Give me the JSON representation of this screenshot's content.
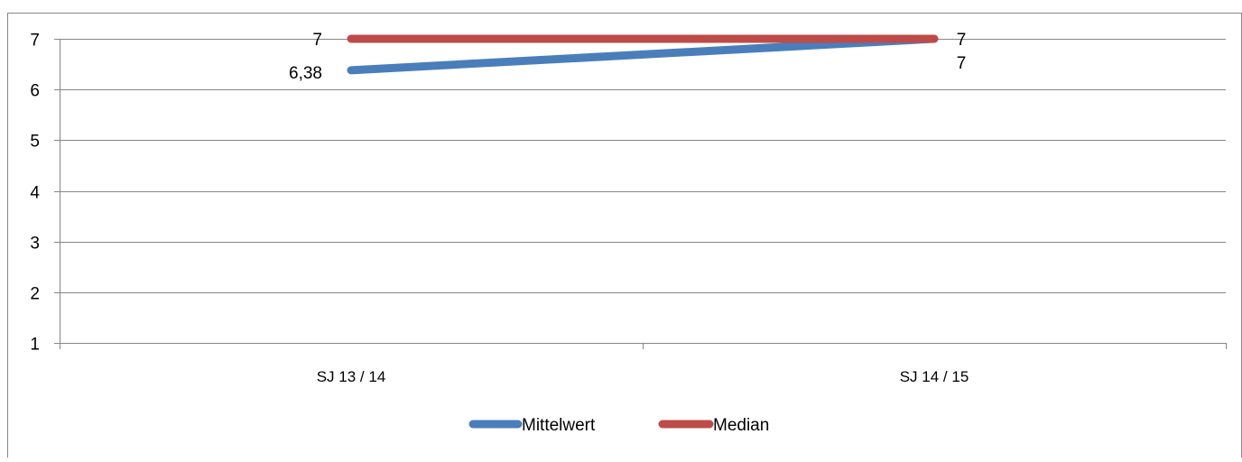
{
  "chart_data": {
    "type": "line",
    "title": "",
    "categories": [
      "SJ 13 / 14",
      "SJ 14 / 15"
    ],
    "series": [
      {
        "name": "Mittelwert",
        "values": [
          6.38,
          7
        ],
        "labels": [
          "6,38",
          "7"
        ],
        "color": "#4A7EBB"
      },
      {
        "name": "Median",
        "values": [
          7,
          7
        ],
        "labels": [
          "7",
          "7"
        ],
        "color": "#BE4B48"
      }
    ],
    "y_ticks": [
      "1",
      "2",
      "3",
      "4",
      "5",
      "6",
      "7"
    ],
    "ylim": [
      1,
      7
    ],
    "grid": "horizontal",
    "legend_position": "bottom"
  }
}
